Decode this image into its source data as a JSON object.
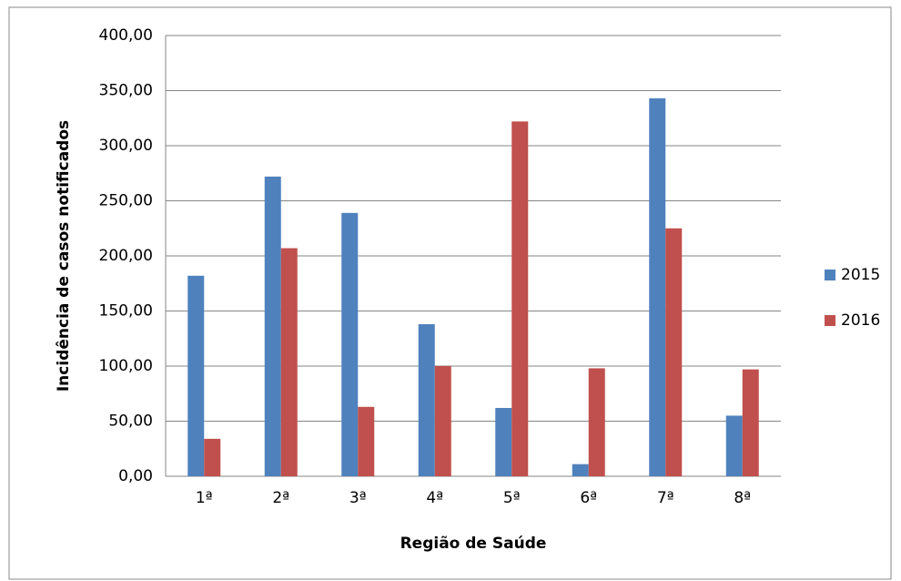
{
  "chart_data": {
    "type": "bar",
    "x_label": "Região de Saúde",
    "y_label": "Incidência de casos notificados",
    "categories": [
      "1ª",
      "2ª",
      "3ª",
      "4ª",
      "5ª",
      "6ª",
      "7ª",
      "8ª"
    ],
    "series": [
      {
        "name": "2015",
        "color": "#4f81bd",
        "values": [
          182,
          272,
          239,
          138,
          62,
          11,
          343,
          55
        ]
      },
      {
        "name": "2016",
        "color": "#c0504d",
        "values": [
          34,
          207,
          63,
          100,
          322,
          98,
          225,
          97
        ]
      }
    ],
    "ylim": [
      0,
      400
    ],
    "yticks": [
      {
        "value": 0,
        "label": "0,00"
      },
      {
        "value": 50,
        "label": "50,00"
      },
      {
        "value": 100,
        "label": "100,00"
      },
      {
        "value": 150,
        "label": "150,00"
      },
      {
        "value": 200,
        "label": "200,00"
      },
      {
        "value": 250,
        "label": "250,00"
      },
      {
        "value": 300,
        "label": "300,00"
      },
      {
        "value": 350,
        "label": "350,00"
      },
      {
        "value": 400,
        "label": "400,00"
      }
    ],
    "grid": true,
    "legend": "right"
  }
}
